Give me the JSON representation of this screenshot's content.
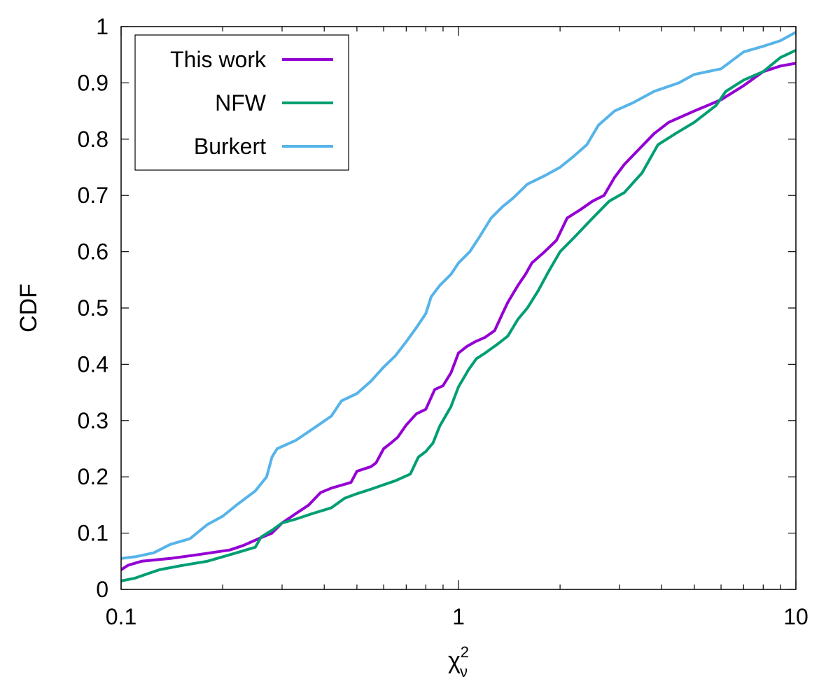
{
  "chart_data": {
    "type": "line",
    "title": "",
    "xlabel": "χ",
    "xlabel_superscript": "2",
    "xlabel_subscript": "ν",
    "ylabel": "CDF",
    "xscale": "log",
    "xlim": [
      0.1,
      10
    ],
    "ylim": [
      0,
      1
    ],
    "grid": false,
    "legend_position": "top-left",
    "x_tick_labels": [
      "0.1",
      "1",
      "10"
    ],
    "x_tick_values": [
      0.1,
      1,
      10
    ],
    "y_tick_labels": [
      "0",
      "0.1",
      "0.2",
      "0.3",
      "0.4",
      "0.5",
      "0.6",
      "0.7",
      "0.8",
      "0.9",
      "1"
    ],
    "y_tick_values": [
      0,
      0.1,
      0.2,
      0.3,
      0.4,
      0.5,
      0.6,
      0.7,
      0.8,
      0.9,
      1
    ],
    "series": [
      {
        "name": "This work",
        "color": "#9400d3",
        "points": [
          [
            0.1,
            0.035
          ],
          [
            0.105,
            0.043
          ],
          [
            0.115,
            0.05
          ],
          [
            0.14,
            0.055
          ],
          [
            0.17,
            0.062
          ],
          [
            0.21,
            0.07
          ],
          [
            0.23,
            0.078
          ],
          [
            0.26,
            0.092
          ],
          [
            0.28,
            0.1
          ],
          [
            0.3,
            0.118
          ],
          [
            0.33,
            0.135
          ],
          [
            0.36,
            0.15
          ],
          [
            0.39,
            0.172
          ],
          [
            0.42,
            0.18
          ],
          [
            0.48,
            0.19
          ],
          [
            0.5,
            0.21
          ],
          [
            0.55,
            0.218
          ],
          [
            0.57,
            0.225
          ],
          [
            0.6,
            0.25
          ],
          [
            0.63,
            0.26
          ],
          [
            0.66,
            0.27
          ],
          [
            0.7,
            0.292
          ],
          [
            0.75,
            0.312
          ],
          [
            0.8,
            0.32
          ],
          [
            0.85,
            0.355
          ],
          [
            0.9,
            0.362
          ],
          [
            0.95,
            0.385
          ],
          [
            1.0,
            0.42
          ],
          [
            1.06,
            0.432
          ],
          [
            1.12,
            0.44
          ],
          [
            1.2,
            0.448
          ],
          [
            1.28,
            0.46
          ],
          [
            1.35,
            0.49
          ],
          [
            1.4,
            0.51
          ],
          [
            1.5,
            0.54
          ],
          [
            1.58,
            0.56
          ],
          [
            1.65,
            0.58
          ],
          [
            1.8,
            0.6
          ],
          [
            1.95,
            0.62
          ],
          [
            2.1,
            0.66
          ],
          [
            2.3,
            0.675
          ],
          [
            2.5,
            0.69
          ],
          [
            2.7,
            0.7
          ],
          [
            2.9,
            0.732
          ],
          [
            3.1,
            0.755
          ],
          [
            3.4,
            0.78
          ],
          [
            3.8,
            0.81
          ],
          [
            4.2,
            0.83
          ],
          [
            5.0,
            0.85
          ],
          [
            6.0,
            0.87
          ],
          [
            7.0,
            0.895
          ],
          [
            8.0,
            0.92
          ],
          [
            9.0,
            0.93
          ],
          [
            10.0,
            0.935
          ]
        ]
      },
      {
        "name": "NFW",
        "color": "#009e73",
        "points": [
          [
            0.1,
            0.015
          ],
          [
            0.11,
            0.02
          ],
          [
            0.12,
            0.028
          ],
          [
            0.13,
            0.035
          ],
          [
            0.15,
            0.042
          ],
          [
            0.18,
            0.05
          ],
          [
            0.2,
            0.058
          ],
          [
            0.22,
            0.065
          ],
          [
            0.25,
            0.075
          ],
          [
            0.26,
            0.093
          ],
          [
            0.28,
            0.105
          ],
          [
            0.3,
            0.118
          ],
          [
            0.33,
            0.125
          ],
          [
            0.37,
            0.135
          ],
          [
            0.42,
            0.145
          ],
          [
            0.46,
            0.162
          ],
          [
            0.5,
            0.17
          ],
          [
            0.55,
            0.178
          ],
          [
            0.6,
            0.186
          ],
          [
            0.65,
            0.193
          ],
          [
            0.72,
            0.205
          ],
          [
            0.76,
            0.235
          ],
          [
            0.8,
            0.245
          ],
          [
            0.84,
            0.26
          ],
          [
            0.88,
            0.29
          ],
          [
            0.95,
            0.325
          ],
          [
            1.0,
            0.36
          ],
          [
            1.07,
            0.39
          ],
          [
            1.13,
            0.41
          ],
          [
            1.2,
            0.42
          ],
          [
            1.3,
            0.435
          ],
          [
            1.4,
            0.45
          ],
          [
            1.5,
            0.48
          ],
          [
            1.6,
            0.5
          ],
          [
            1.72,
            0.53
          ],
          [
            1.85,
            0.565
          ],
          [
            2.0,
            0.6
          ],
          [
            2.2,
            0.625
          ],
          [
            2.5,
            0.66
          ],
          [
            2.8,
            0.69
          ],
          [
            3.1,
            0.705
          ],
          [
            3.5,
            0.74
          ],
          [
            3.9,
            0.79
          ],
          [
            4.4,
            0.81
          ],
          [
            5.0,
            0.83
          ],
          [
            5.8,
            0.86
          ],
          [
            6.2,
            0.885
          ],
          [
            7.0,
            0.905
          ],
          [
            8.0,
            0.92
          ],
          [
            9.0,
            0.945
          ],
          [
            10.0,
            0.958
          ]
        ]
      },
      {
        "name": "Burkert",
        "color": "#56b4e9",
        "points": [
          [
            0.1,
            0.055
          ],
          [
            0.11,
            0.058
          ],
          [
            0.125,
            0.065
          ],
          [
            0.14,
            0.08
          ],
          [
            0.16,
            0.09
          ],
          [
            0.18,
            0.115
          ],
          [
            0.2,
            0.13
          ],
          [
            0.22,
            0.15
          ],
          [
            0.25,
            0.175
          ],
          [
            0.27,
            0.2
          ],
          [
            0.28,
            0.235
          ],
          [
            0.29,
            0.25
          ],
          [
            0.33,
            0.265
          ],
          [
            0.38,
            0.29
          ],
          [
            0.42,
            0.308
          ],
          [
            0.45,
            0.335
          ],
          [
            0.5,
            0.348
          ],
          [
            0.55,
            0.37
          ],
          [
            0.6,
            0.395
          ],
          [
            0.65,
            0.415
          ],
          [
            0.7,
            0.44
          ],
          [
            0.75,
            0.465
          ],
          [
            0.8,
            0.49
          ],
          [
            0.83,
            0.52
          ],
          [
            0.88,
            0.54
          ],
          [
            0.95,
            0.56
          ],
          [
            1.0,
            0.58
          ],
          [
            1.08,
            0.6
          ],
          [
            1.15,
            0.625
          ],
          [
            1.25,
            0.66
          ],
          [
            1.35,
            0.68
          ],
          [
            1.45,
            0.695
          ],
          [
            1.6,
            0.72
          ],
          [
            1.8,
            0.735
          ],
          [
            2.0,
            0.75
          ],
          [
            2.2,
            0.77
          ],
          [
            2.4,
            0.79
          ],
          [
            2.6,
            0.825
          ],
          [
            2.9,
            0.85
          ],
          [
            3.3,
            0.865
          ],
          [
            3.8,
            0.885
          ],
          [
            4.5,
            0.9
          ],
          [
            5.0,
            0.915
          ],
          [
            6.0,
            0.925
          ],
          [
            7.0,
            0.955
          ],
          [
            8.0,
            0.965
          ],
          [
            9.0,
            0.975
          ],
          [
            10.0,
            0.99
          ]
        ]
      }
    ]
  }
}
